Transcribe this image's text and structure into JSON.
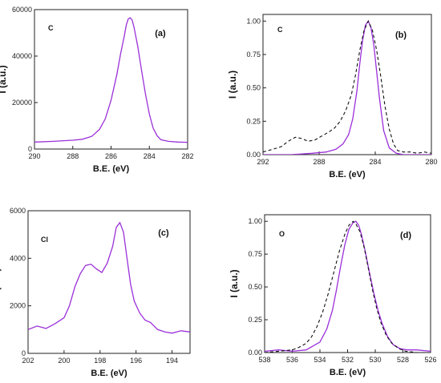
{
  "chart_data": [
    {
      "panel": "(a)",
      "element": "C",
      "type": "line",
      "xlabel": "B.E. (eV)",
      "ylabel": "I (a.u.)",
      "xlim": [
        290,
        282
      ],
      "ylim": [
        0,
        60000
      ],
      "x_reversed": true,
      "xticks": [
        290,
        288,
        286,
        284,
        282
      ],
      "yticks": [
        0,
        20000,
        40000,
        60000
      ],
      "series": [
        {
          "style": "solid",
          "color": "#9b30d9",
          "x": [
            290,
            289,
            288,
            287.5,
            287,
            286.6,
            286.3,
            286,
            285.7,
            285.5,
            285.3,
            285.2,
            285.1,
            285,
            284.9,
            284.8,
            284.6,
            284.4,
            284.2,
            284,
            283.8,
            283.6,
            283.4,
            283,
            282.5,
            282
          ],
          "y": [
            3000,
            3300,
            3800,
            4200,
            5500,
            8500,
            13000,
            21000,
            32000,
            41000,
            49000,
            53500,
            56000,
            56500,
            55500,
            52500,
            44000,
            33500,
            23500,
            15000,
            9000,
            5800,
            4000,
            3300,
            3000,
            2900
          ]
        }
      ]
    },
    {
      "panel": "(b)",
      "element": "C",
      "type": "line",
      "xlabel": "B.E. (eV)",
      "ylabel": "I (a.u.)",
      "xlim": [
        292,
        280
      ],
      "ylim": [
        0,
        1.05
      ],
      "x_reversed": true,
      "xticks": [
        292,
        288,
        284,
        280
      ],
      "yticks": [
        0.0,
        0.25,
        0.5,
        0.75,
        1.0
      ],
      "series": [
        {
          "style": "solid",
          "color": "#9b30d9",
          "x": [
            292,
            290,
            288.5,
            287.5,
            286.8,
            286.3,
            285.9,
            285.6,
            285.3,
            285.1,
            284.9,
            284.7,
            284.5,
            284.3,
            284.1,
            283.9,
            283.7,
            283.4,
            283,
            282.5,
            282,
            281,
            280
          ],
          "y": [
            0,
            0,
            0.01,
            0.02,
            0.04,
            0.08,
            0.15,
            0.27,
            0.48,
            0.68,
            0.86,
            0.97,
            1.0,
            0.95,
            0.82,
            0.62,
            0.42,
            0.18,
            0.05,
            0.01,
            0,
            0,
            0
          ]
        },
        {
          "style": "dashed",
          "color": "#111111",
          "x": [
            292,
            291.3,
            290.7,
            290.2,
            289.7,
            289.2,
            288.8,
            288.3,
            287.8,
            287.3,
            286.9,
            286.5,
            286.1,
            285.7,
            285.4,
            285.1,
            284.8,
            284.5,
            284.2,
            283.9,
            283.6,
            283.3,
            283,
            282.7,
            282.4,
            282,
            281.5,
            281,
            280.5,
            280
          ],
          "y": [
            0.02,
            0.04,
            0.06,
            0.1,
            0.13,
            0.12,
            0.1,
            0.11,
            0.14,
            0.17,
            0.2,
            0.25,
            0.33,
            0.45,
            0.6,
            0.78,
            0.93,
            1.0,
            0.93,
            0.78,
            0.58,
            0.36,
            0.19,
            0.08,
            0.03,
            0.02,
            0.02,
            0.01,
            0.02,
            0.01
          ]
        }
      ]
    },
    {
      "panel": "(c)",
      "element": "Cl",
      "type": "line",
      "xlabel": "B.E. (eV)",
      "ylabel": "I (a.u.)",
      "xlim": [
        202,
        193
      ],
      "ylim": [
        0,
        6000
      ],
      "x_reversed": true,
      "xticks": [
        202,
        200,
        198,
        196,
        194
      ],
      "yticks": [
        0,
        2000,
        4000,
        6000
      ],
      "series": [
        {
          "style": "solid",
          "color": "#9b30d9",
          "x": [
            202,
            201.5,
            201,
            200.5,
            200,
            199.7,
            199.4,
            199.1,
            198.8,
            198.5,
            198.2,
            197.9,
            197.6,
            197.3,
            197.1,
            196.9,
            196.7,
            196.5,
            196.3,
            196.1,
            195.8,
            195.5,
            195.2,
            194.8,
            194.4,
            194,
            193.5,
            193
          ],
          "y": [
            1000,
            1150,
            1050,
            1250,
            1500,
            2000,
            2800,
            3350,
            3700,
            3750,
            3550,
            3400,
            3800,
            4500,
            5300,
            5500,
            5100,
            4000,
            2900,
            2200,
            1700,
            1400,
            1300,
            1000,
            900,
            850,
            950,
            900
          ]
        }
      ]
    },
    {
      "panel": "(d)",
      "element": "O",
      "type": "line",
      "xlabel": "B.E. (eV)",
      "ylabel": "I (a.u.)",
      "xlim": [
        538,
        526
      ],
      "ylim": [
        0,
        1.05
      ],
      "x_reversed": true,
      "xticks": [
        538,
        536,
        534,
        532,
        530,
        528,
        526
      ],
      "yticks": [
        0.0,
        0.25,
        0.5,
        0.75,
        1.0
      ],
      "series": [
        {
          "style": "solid",
          "color": "#9b30d9",
          "x": [
            538,
            537,
            536,
            535,
            534.5,
            534,
            533.5,
            533.1,
            532.8,
            532.5,
            532.2,
            531.9,
            531.6,
            531.4,
            531.2,
            531,
            530.7,
            530.4,
            530.1,
            529.8,
            529.5,
            529.1,
            528.7,
            528.2,
            527.7,
            527,
            526
          ],
          "y": [
            0.01,
            0.02,
            0.01,
            0.02,
            0.05,
            0.08,
            0.18,
            0.32,
            0.48,
            0.66,
            0.82,
            0.94,
            0.99,
            1.0,
            0.97,
            0.9,
            0.76,
            0.6,
            0.45,
            0.32,
            0.22,
            0.12,
            0.06,
            0.03,
            0.02,
            0.02,
            0.01
          ]
        },
        {
          "style": "dashed",
          "color": "#111111",
          "x": [
            538,
            537,
            536,
            535.5,
            535,
            534.6,
            534.2,
            533.8,
            533.4,
            533,
            532.6,
            532.2,
            531.9,
            531.6,
            531.4,
            531.1,
            530.8,
            530.5,
            530.2,
            529.9,
            529.6,
            529.2,
            528.8,
            528.3,
            527.8,
            527,
            526
          ],
          "y": [
            0.0,
            0.01,
            0.02,
            0.04,
            0.07,
            0.12,
            0.2,
            0.31,
            0.45,
            0.61,
            0.77,
            0.9,
            0.97,
            1.0,
            0.98,
            0.92,
            0.8,
            0.64,
            0.48,
            0.34,
            0.23,
            0.13,
            0.07,
            0.03,
            0.01,
            0.0,
            0.0
          ]
        }
      ]
    }
  ]
}
